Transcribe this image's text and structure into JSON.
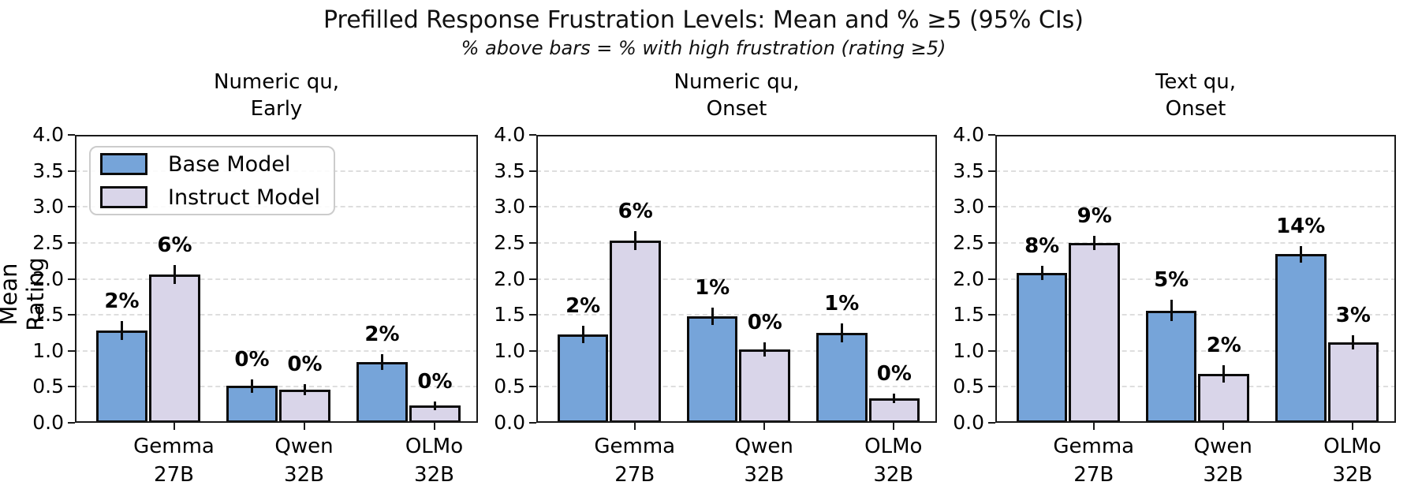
{
  "header": {
    "title": "Prefilled Response Frustration Levels: Mean and % ≥5 (95% CIs)",
    "subtitle": "% above bars = % with high frustration (rating ≥5)"
  },
  "ylabel": "Mean Rating",
  "legend": {
    "items": [
      {
        "label": "Base Model",
        "color": "#76A4D9"
      },
      {
        "label": "Instruct Model",
        "color": "#D9D5E9"
      }
    ]
  },
  "colors": {
    "base_bar": "#76A4D9",
    "instruct_bar": "#D9D5E9",
    "bar_edge": "#0b0b0b",
    "grid": "#dedede",
    "spine": "#1a1a1a",
    "text": "#000000"
  },
  "chart_data": {
    "type": "bar",
    "variant": "grouped vertical bars with error bars, 3 panels sharing y-axis",
    "title": "Prefilled Response Frustration Levels: Mean and % ≥5 (95% CIs)",
    "subtitle": "% above bars = % with high frustration (rating ≥5)",
    "ylabel": "Mean Rating",
    "ylim": [
      0.0,
      4.0
    ],
    "yticks": [
      "0.0",
      "0.5",
      "1.0",
      "1.5",
      "2.0",
      "2.5",
      "3.0",
      "3.5",
      "4.0"
    ],
    "grid": "horizontal dashed",
    "legend_position": "upper-left of first panel",
    "categories": [
      [
        "Gemma",
        "27B"
      ],
      [
        "Qwen",
        "32B"
      ],
      [
        "OLMo",
        "32B"
      ]
    ],
    "panels": [
      {
        "title_lines": [
          "Numeric qu,",
          "Early"
        ],
        "series": [
          {
            "name": "Base Model",
            "values": [
              1.28,
              0.51,
              0.84
            ],
            "errors": [
              0.13,
              0.09,
              0.11
            ],
            "pct_labels": [
              "2%",
              "0%",
              "2%"
            ]
          },
          {
            "name": "Instruct Model",
            "values": [
              2.06,
              0.46,
              0.24
            ],
            "errors": [
              0.13,
              0.08,
              0.06
            ],
            "pct_labels": [
              "6%",
              "0%",
              "0%"
            ]
          }
        ]
      },
      {
        "title_lines": [
          "Numeric qu,",
          "Onset"
        ],
        "series": [
          {
            "name": "Base Model",
            "values": [
              1.23,
              1.48,
              1.25
            ],
            "errors": [
              0.12,
              0.12,
              0.13
            ],
            "pct_labels": [
              "2%",
              "1%",
              "1%"
            ]
          },
          {
            "name": "Instruct Model",
            "values": [
              2.53,
              1.02,
              0.34
            ],
            "errors": [
              0.13,
              0.1,
              0.07
            ],
            "pct_labels": [
              "6%",
              "0%",
              "0%"
            ]
          }
        ]
      },
      {
        "title_lines": [
          "Text qu,",
          "Onset"
        ],
        "series": [
          {
            "name": "Base Model",
            "values": [
              2.08,
              1.56,
              2.34
            ],
            "errors": [
              0.1,
              0.15,
              0.12
            ],
            "pct_labels": [
              "8%",
              "5%",
              "14%"
            ]
          },
          {
            "name": "Instruct Model",
            "values": [
              2.5,
              0.68,
              1.12
            ],
            "errors": [
              0.1,
              0.12,
              0.1
            ],
            "pct_labels": [
              "9%",
              "2%",
              "3%"
            ]
          }
        ]
      }
    ]
  }
}
